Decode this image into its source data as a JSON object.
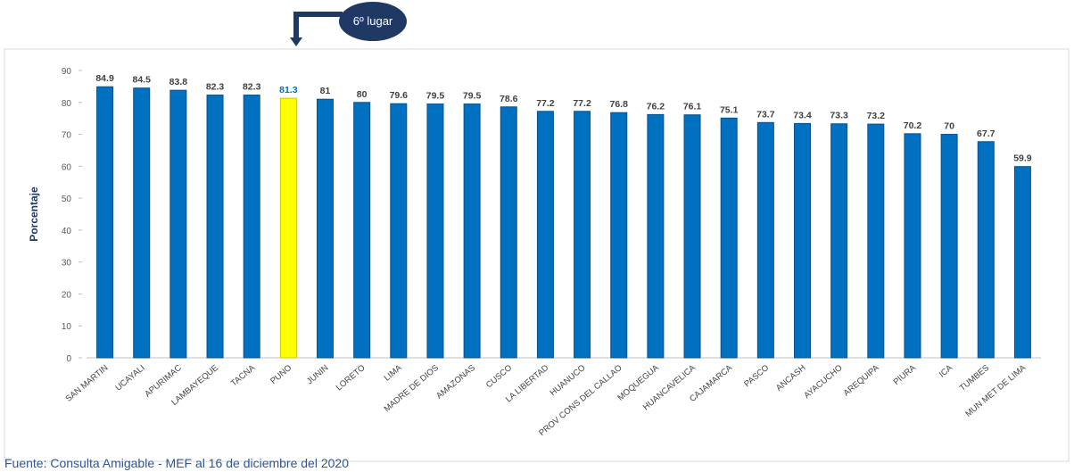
{
  "chart_data": {
    "type": "bar",
    "y_label": "Porcentaje",
    "annotation": "6º lugar",
    "source": "Fuente: Consulta Amigable - MEF al 16 de diciembre del 2020",
    "categories": [
      "SAN MARTIN",
      "UCAYALI",
      "APURIMAC",
      "LAMBAYEQUE",
      "TACNA",
      "PUNO",
      "JUNIN",
      "LORETO",
      "LIMA",
      "MADRE DE DIOS",
      "AMAZONAS",
      "CUSCO",
      "LA LIBERTAD",
      "HUANUCO",
      "PROV CONS DEL CALLAO",
      "MOQUEGUA",
      "HUANCAVELICA",
      "CAJAMARCA",
      "PASCO",
      "ANCASH",
      "AYACUCHO",
      "AREQUIPA",
      "PIURA",
      "ICA",
      "TUMBES",
      "MUN MET DE LIMA"
    ],
    "values": [
      84.9,
      84.5,
      83.8,
      82.3,
      82.3,
      81.3,
      81,
      80,
      79.6,
      79.5,
      79.5,
      78.6,
      77.2,
      77.2,
      76.8,
      76.2,
      76.1,
      75.1,
      73.7,
      73.4,
      73.3,
      73.2,
      70.2,
      70,
      67.7,
      59.9
    ],
    "colors": [
      "#0070c0",
      "#0070c0",
      "#0070c0",
      "#0070c0",
      "#0070c0",
      "#ffff00",
      "#0070c0",
      "#0070c0",
      "#0070c0",
      "#0070c0",
      "#0070c0",
      "#0070c0",
      "#0070c0",
      "#0070c0",
      "#0070c0",
      "#0070c0",
      "#0070c0",
      "#0070c0",
      "#0070c0",
      "#0070c0",
      "#0070c0",
      "#0070c0",
      "#0070c0",
      "#0070c0",
      "#0070c0",
      "#0070c0"
    ],
    "ylim": [
      0,
      90
    ],
    "yticks": [
      0,
      10,
      20,
      30,
      40,
      50,
      60,
      70,
      80,
      90
    ]
  }
}
